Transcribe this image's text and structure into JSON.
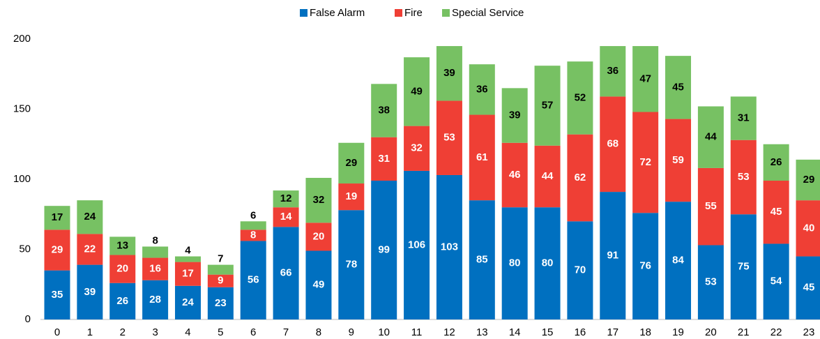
{
  "chart_data": {
    "type": "stacked_bar",
    "categories": [
      "0",
      "1",
      "2",
      "3",
      "4",
      "5",
      "6",
      "7",
      "8",
      "9",
      "10",
      "11",
      "12",
      "13",
      "14",
      "15",
      "16",
      "17",
      "18",
      "19",
      "20",
      "21",
      "22",
      "23"
    ],
    "series": [
      {
        "name": "False Alarm",
        "color": "#0070c0",
        "values": [
          35,
          39,
          26,
          28,
          24,
          23,
          56,
          66,
          49,
          78,
          99,
          106,
          103,
          85,
          80,
          80,
          70,
          91,
          76,
          84,
          53,
          75,
          54,
          45
        ]
      },
      {
        "name": "Fire",
        "color": "#ef3f35",
        "values": [
          29,
          22,
          20,
          16,
          17,
          9,
          8,
          14,
          20,
          19,
          31,
          32,
          53,
          61,
          46,
          44,
          62,
          68,
          72,
          59,
          55,
          53,
          45,
          40
        ]
      },
      {
        "name": "Special Service",
        "color": "#77c163",
        "values": [
          17,
          24,
          13,
          8,
          4,
          7,
          6,
          12,
          32,
          29,
          38,
          49,
          39,
          36,
          39,
          57,
          52,
          36,
          47,
          45,
          44,
          31,
          26,
          29
        ]
      }
    ],
    "ylim": [
      0,
      200
    ],
    "yticks": [
      0,
      50,
      100,
      150,
      200
    ],
    "legend": "top"
  }
}
